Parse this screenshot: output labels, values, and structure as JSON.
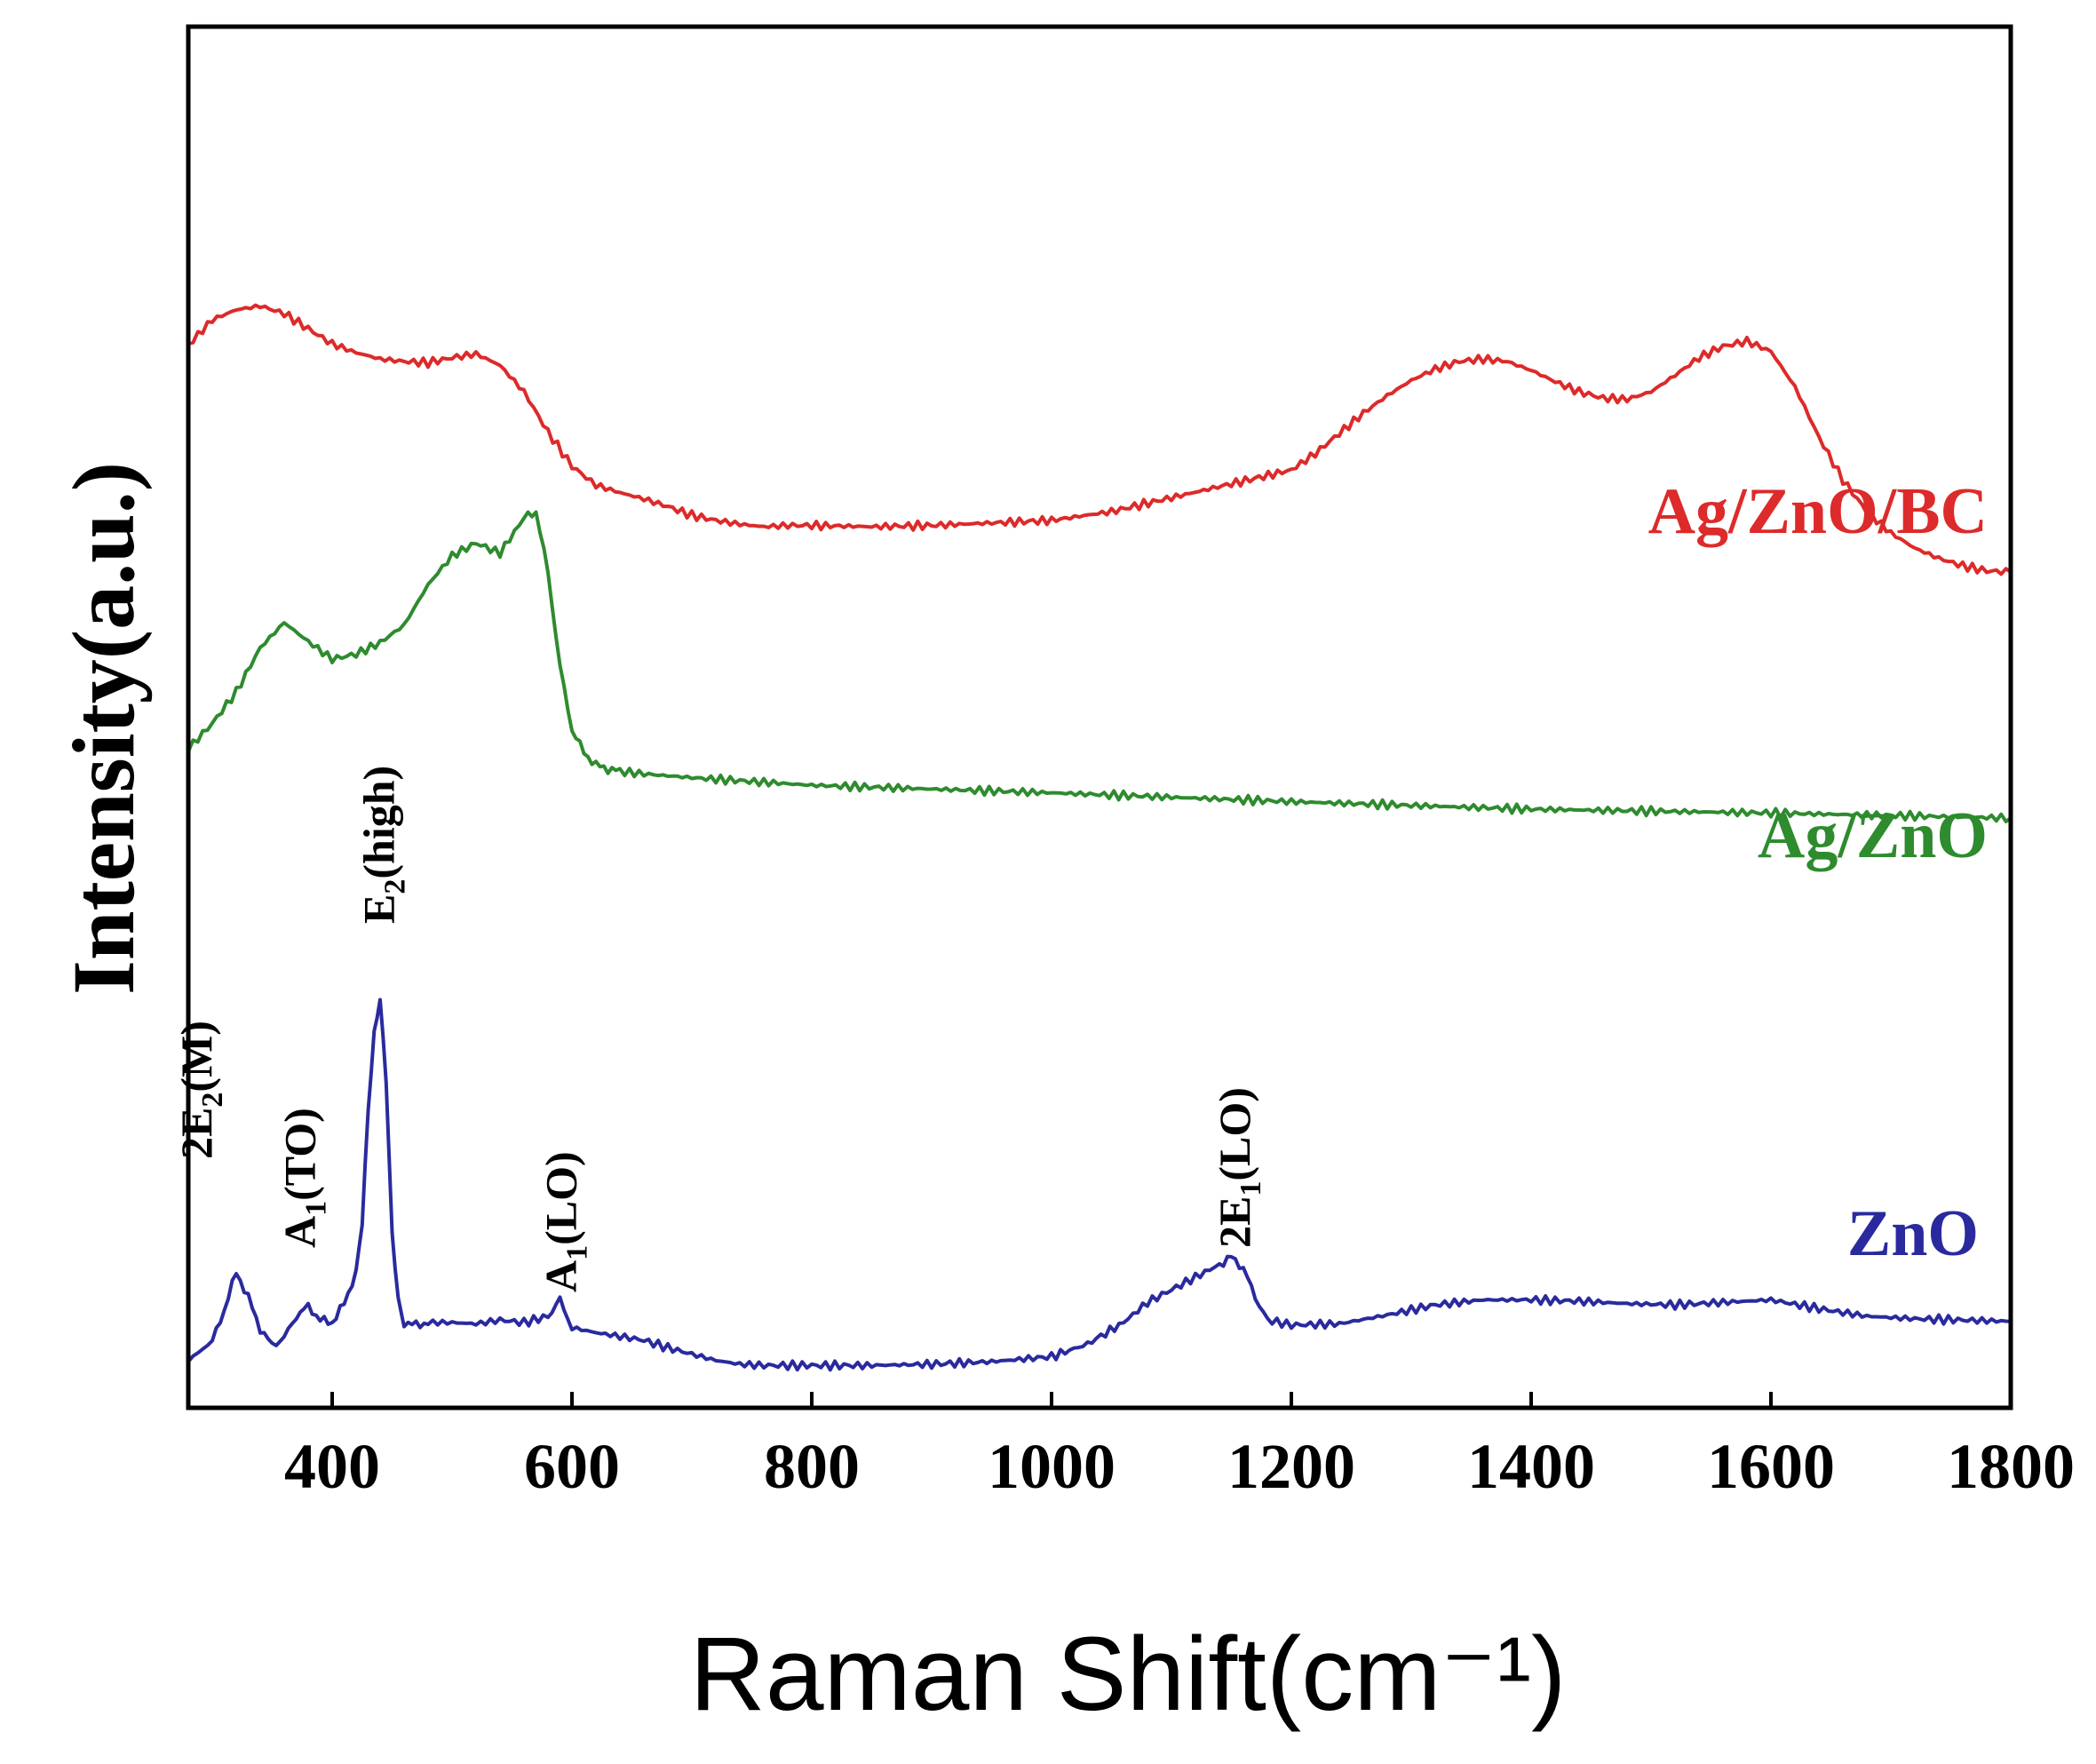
{
  "chart_data": {
    "type": "line",
    "xlabel": "Raman Shift(cm⁻¹)",
    "ylabel": "Intensity(a.u.)",
    "xlim": [
      280,
      1800
    ],
    "ylim": [
      0,
      100
    ],
    "x_ticks": [
      400,
      600,
      800,
      1000,
      1200,
      1400,
      1600,
      1800
    ],
    "x_tick_labels": [
      "400",
      "600",
      "800",
      "1000",
      "1200",
      "1400",
      "1600",
      "1800"
    ],
    "series": [
      {
        "name": "Ag/ZnO/BC",
        "label": "Ag/ZnO/BC",
        "color": "#dd2a2a",
        "x": [
          280,
          300,
          320,
          340,
          360,
          380,
          400,
          420,
          440,
          460,
          480,
          500,
          520,
          540,
          560,
          580,
          600,
          620,
          640,
          660,
          680,
          700,
          720,
          740,
          760,
          780,
          800,
          850,
          900,
          950,
          1000,
          1050,
          1100,
          1150,
          1200,
          1220,
          1240,
          1260,
          1280,
          1300,
          1320,
          1340,
          1360,
          1380,
          1400,
          1420,
          1440,
          1460,
          1480,
          1500,
          1520,
          1540,
          1560,
          1580,
          1600,
          1620,
          1640,
          1660,
          1680,
          1700,
          1720,
          1740,
          1760,
          1780,
          1800
        ],
        "y": [
          82.5,
          84.5,
          85.3,
          85.6,
          85.0,
          83.8,
          82.6,
          81.9,
          81.4,
          81.2,
          81.1,
          81.5,
          81.8,
          80.9,
          78.8,
          75.6,
          72.9,
          71.4,
          70.8,
          70.3,
          69.7,
          69.0,
          68.6,
          68.3,
          68.1,
          68.2,
          68.2,
          68.1,
          68.2,
          68.4,
          68.6,
          69.3,
          70.4,
          71.5,
          72.6,
          73.9,
          75.5,
          77.1,
          78.5,
          79.7,
          80.6,
          81.2,
          81.4,
          81.2,
          80.5,
          79.6,
          78.8,
          78.3,
          78.2,
          78.8,
          80.1,
          81.5,
          82.4,
          82.8,
          82.0,
          79.2,
          75.2,
          71.8,
          69.3,
          67.6,
          66.4,
          65.6,
          65.0,
          64.6,
          64.5
        ]
      },
      {
        "name": "Ag/ZnO",
        "label": "Ag/ZnO",
        "color": "#2e8b2e",
        "x": [
          280,
          300,
          320,
          340,
          360,
          380,
          400,
          420,
          440,
          460,
          480,
          500,
          520,
          540,
          560,
          570,
          580,
          590,
          600,
          610,
          620,
          630,
          640,
          660,
          700,
          800,
          1000,
          1200,
          1400,
          1600,
          1800
        ],
        "y": [
          50.5,
          52.5,
          55.0,
          58.5,
          60.5,
          59.0,
          57.6,
          58.0,
          58.9,
          60.3,
          63.5,
          65.8,
          66.8,
          66.0,
          68.8,
          69.3,
          64.5,
          57.0,
          52.0,
          50.2,
          49.2,
          48.9,
          48.7,
          48.5,
          48.2,
          47.6,
          47.0,
          46.3,
          45.7,
          45.4,
          45.0
        ]
      },
      {
        "name": "ZnO",
        "label": "ZnO",
        "color": "#2a2a9e",
        "x": [
          280,
          300,
          310,
          320,
          330,
          340,
          350,
          360,
          370,
          380,
          390,
          400,
          410,
          420,
          425,
          430,
          435,
          440,
          445,
          450,
          455,
          460,
          470,
          480,
          500,
          520,
          540,
          560,
          580,
          590,
          600,
          620,
          640,
          660,
          680,
          700,
          720,
          740,
          760,
          800,
          850,
          900,
          950,
          1000,
          1030,
          1060,
          1080,
          1100,
          1120,
          1140,
          1150,
          1160,
          1170,
          1180,
          1200,
          1240,
          1280,
          1320,
          1360,
          1400,
          1440,
          1480,
          1520,
          1560,
          1600,
          1640,
          1680,
          1720,
          1760,
          1800
        ],
        "y": [
          2.0,
          3.5,
          6.0,
          9.0,
          7.0,
          4.5,
          3.2,
          3.8,
          5.5,
          6.3,
          5.2,
          5.0,
          6.5,
          9.0,
          13.0,
          22.0,
          28.0,
          30.5,
          24.0,
          12.0,
          7.0,
          5.0,
          4.8,
          5.0,
          5.0,
          4.9,
          5.2,
          5.0,
          5.5,
          6.8,
          4.6,
          4.2,
          3.9,
          3.6,
          3.0,
          2.5,
          2.0,
          1.7,
          1.6,
          1.6,
          1.6,
          1.7,
          1.9,
          2.3,
          3.3,
          5.0,
          6.6,
          7.6,
          8.6,
          9.6,
          10.2,
          9.3,
          7.0,
          5.2,
          4.8,
          4.9,
          5.6,
          6.4,
          6.8,
          6.8,
          6.7,
          6.5,
          6.4,
          6.6,
          6.8,
          6.1,
          5.5,
          5.3,
          5.2,
          5.1
        ]
      }
    ],
    "annotations": [
      {
        "text": "2E",
        "sub": "2",
        "rest": "(M)",
        "x": 332,
        "y": 9
      },
      {
        "text": "A",
        "sub": "1",
        "rest": "(TO)",
        "x": 381,
        "y": 6.3
      },
      {
        "text": "E",
        "sub": "2",
        "rest": "(high)",
        "x": 438,
        "y": 30.5
      },
      {
        "text": "A",
        "sub": "1",
        "rest": "(LO)",
        "x": 590,
        "y": 6.8
      },
      {
        "text": "2E",
        "sub": "1",
        "rest": "(LO)",
        "x": 1152,
        "y": 10.2
      }
    ]
  }
}
